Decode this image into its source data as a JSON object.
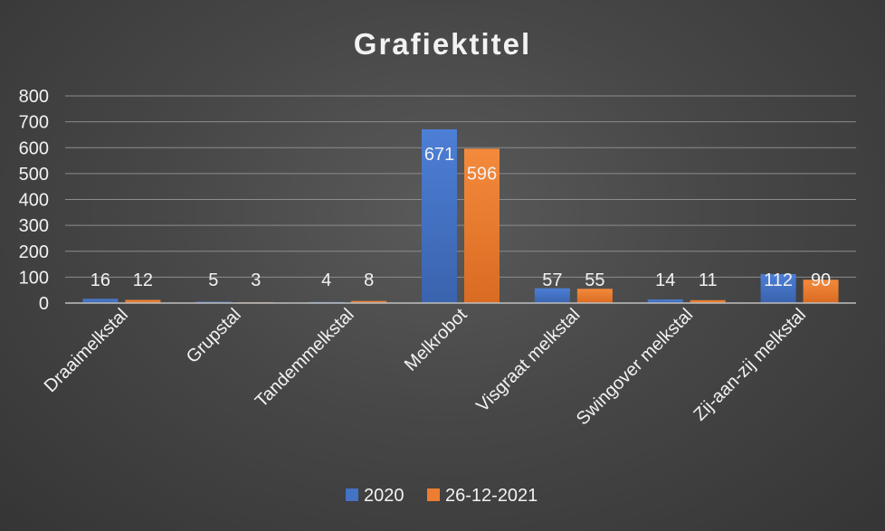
{
  "colors": {
    "2020": "#4472c4",
    "26-12-2021": "#ed7d31",
    "axis": "#bfbfbf",
    "grid": "#8c8c8c",
    "text": "#f2f2f2"
  },
  "chart_data": {
    "type": "bar",
    "title": "Grafiektitel",
    "categories": [
      "Draaimelkstal",
      "Grupstal",
      "Tandemmelkstal",
      "Melkrobot",
      "Visgraat melkstal",
      "Swingover melkstal",
      "Zij-aan-zij melkstal"
    ],
    "series": [
      {
        "name": "2020",
        "values": [
          16,
          5,
          4,
          671,
          57,
          14,
          112
        ]
      },
      {
        "name": "26-12-2021",
        "values": [
          12,
          3,
          8,
          596,
          55,
          11,
          90
        ]
      }
    ],
    "ylim": [
      0,
      800
    ],
    "yticks": [
      0,
      100,
      200,
      300,
      400,
      500,
      600,
      700,
      800
    ],
    "grid": true,
    "legend": "bottom",
    "data_labels": true
  }
}
